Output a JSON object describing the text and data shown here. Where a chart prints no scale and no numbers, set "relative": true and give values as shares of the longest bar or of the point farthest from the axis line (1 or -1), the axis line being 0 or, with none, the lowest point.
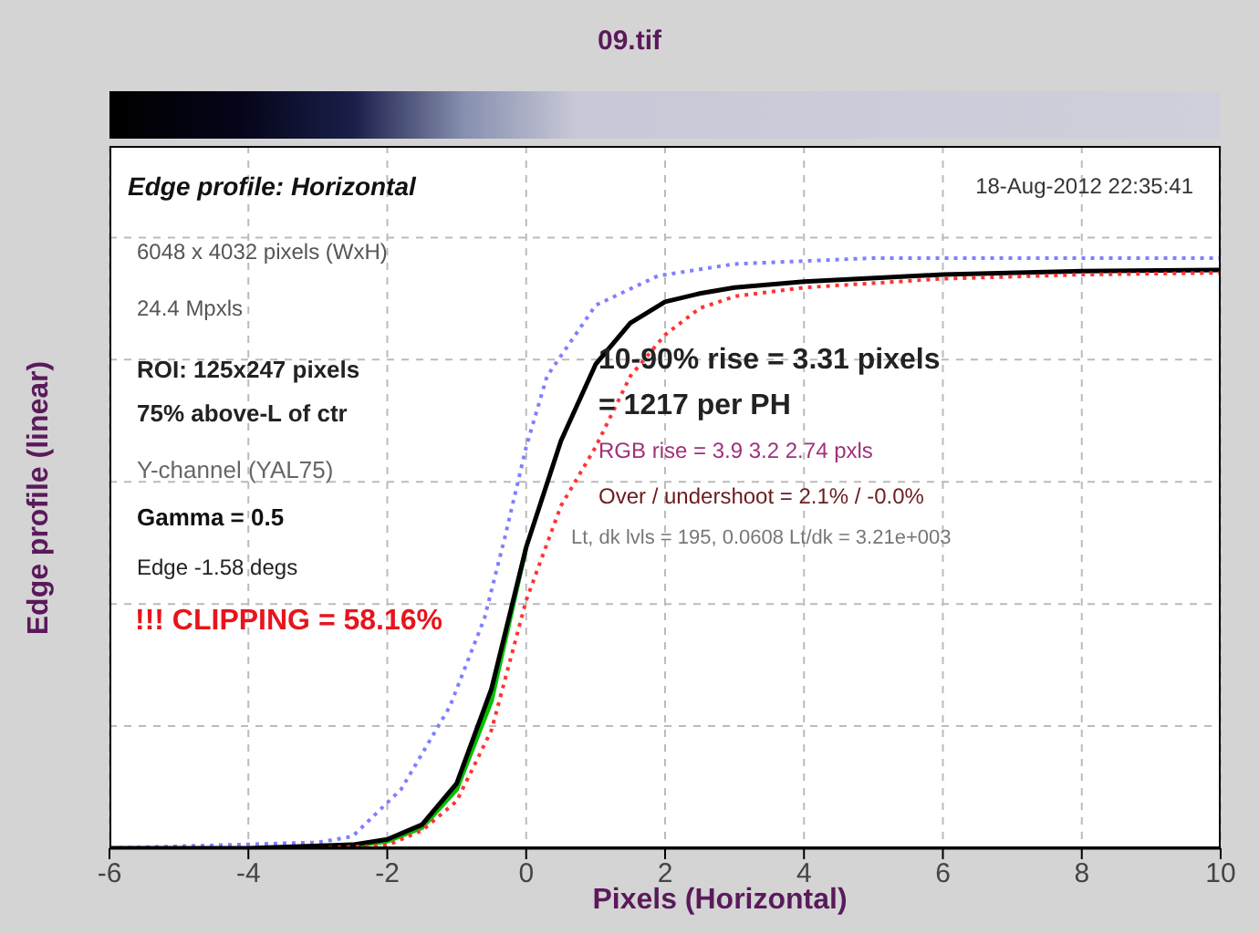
{
  "chart_data": {
    "type": "line",
    "title": "09.tif",
    "subtitle": "Edge profile: Horizontal",
    "xlabel": "Pixels (Horizontal)",
    "ylabel": "Edge profile (linear)",
    "annotations": [
      "18-Aug-2012 22:35:41",
      "6048 x 4032 pixels (WxH)",
      "24.4 Mpxls",
      "ROI:  125x247 pixels",
      "75% above-L of ctr",
      "Y-channel  (YAL75)",
      "Gamma = 0.5",
      "Edge -1.58 degs",
      "!!! CLIPPING =  58.16%",
      "10-90% rise = 3.31 pixels",
      "= 1217 per PH",
      "RGB rise = 3.9  3.2  2.74 pxls",
      "Over / undershoot = 2.1% / -0.0%",
      "Lt, dk lvls = 195, 0.0608   Lt/dk = 3.21e+003"
    ],
    "relative": true,
    "xlim": [
      -6,
      10
    ],
    "xticks": [
      -6,
      -4,
      -2,
      0,
      2,
      4,
      6,
      8,
      10
    ],
    "grid": true,
    "tick_labels": "x",
    "legend": false,
    "series": [
      {
        "color": "#7f7fff",
        "line_style": "dotted",
        "x": [
          -6,
          -3,
          -2.5,
          -1.8,
          -1.1,
          -0.6,
          -0.3,
          0,
          0.3,
          1,
          1.9,
          3,
          5,
          10
        ],
        "values": [
          0,
          0.01,
          0.02,
          0.1,
          0.24,
          0.39,
          0.53,
          0.68,
          0.8,
          0.92,
          0.97,
          0.99,
          1,
          1
        ]
      },
      {
        "color": "#00c000",
        "line_style": "solid",
        "x": [
          -2.5,
          -2,
          -1.5,
          -1,
          -0.5,
          0
        ],
        "values": [
          0.004,
          0.012,
          0.035,
          0.1,
          0.25,
          0.51
        ]
      },
      {
        "color": "#000000",
        "line_style": "solid",
        "x": [
          -6,
          -4,
          -2.5,
          -2,
          -1.5,
          -1,
          -0.5,
          0,
          0.5,
          1,
          1.5,
          2,
          2.5,
          3,
          4,
          6,
          8,
          10
        ],
        "values": [
          0,
          0,
          0.006,
          0.015,
          0.04,
          0.11,
          0.27,
          0.51,
          0.69,
          0.82,
          0.89,
          0.926,
          0.94,
          0.95,
          0.96,
          0.972,
          0.978,
          0.98
        ]
      },
      {
        "color": "#ff3333",
        "line_style": "dotted",
        "x": [
          -6,
          -3,
          -2,
          -1.5,
          -1,
          -0.5,
          0,
          0.5,
          1,
          1.5,
          2,
          2.5,
          3,
          4,
          6,
          8,
          10
        ],
        "values": [
          0,
          0,
          0.005,
          0.03,
          0.08,
          0.2,
          0.42,
          0.58,
          0.68,
          0.8,
          0.87,
          0.915,
          0.935,
          0.95,
          0.965,
          0.972,
          0.975
        ]
      }
    ]
  }
}
